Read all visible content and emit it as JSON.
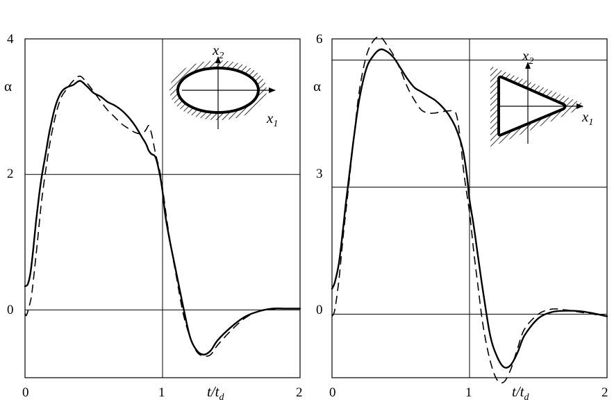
{
  "chart_data": [
    {
      "type": "line",
      "ylabel": "α",
      "xlabel_main": "t/t",
      "xlabel_sub": "d",
      "xlim": [
        0,
        2
      ],
      "ylim": [
        -1,
        4
      ],
      "grid": true,
      "x_ticks": [
        "0",
        "1",
        "2"
      ],
      "y_ticks": [
        {
          "value": 0,
          "label": "0"
        },
        {
          "value": 2,
          "label": "2"
        },
        {
          "value": 4,
          "label": "4"
        }
      ],
      "inset": {
        "shape": "ellipse",
        "axis1_main": "x",
        "axis1_sub": "1",
        "axis2_main": "x",
        "axis2_sub": "2"
      },
      "series": [
        {
          "style": "solid",
          "points": [
            [
              0,
              0.35
            ],
            [
              0.02,
              0.38
            ],
            [
              0.04,
              0.55
            ],
            [
              0.06,
              0.9
            ],
            [
              0.08,
              1.3
            ],
            [
              0.1,
              1.65
            ],
            [
              0.12,
              1.95
            ],
            [
              0.15,
              2.3
            ],
            [
              0.18,
              2.65
            ],
            [
              0.22,
              3.0
            ],
            [
              0.26,
              3.2
            ],
            [
              0.3,
              3.28
            ],
            [
              0.35,
              3.32
            ],
            [
              0.4,
              3.38
            ],
            [
              0.45,
              3.3
            ],
            [
              0.5,
              3.2
            ],
            [
              0.55,
              3.15
            ],
            [
              0.6,
              3.07
            ],
            [
              0.65,
              3.02
            ],
            [
              0.7,
              2.95
            ],
            [
              0.75,
              2.85
            ],
            [
              0.8,
              2.72
            ],
            [
              0.85,
              2.55
            ],
            [
              0.88,
              2.45
            ],
            [
              0.9,
              2.35
            ],
            [
              0.92,
              2.3
            ],
            [
              0.95,
              2.25
            ],
            [
              0.98,
              2.0
            ],
            [
              1.0,
              1.75
            ],
            [
              1.02,
              1.4
            ],
            [
              1.05,
              1.05
            ],
            [
              1.1,
              0.55
            ],
            [
              1.15,
              0.05
            ],
            [
              1.2,
              -0.4
            ],
            [
              1.25,
              -0.6
            ],
            [
              1.3,
              -0.66
            ],
            [
              1.35,
              -0.6
            ],
            [
              1.4,
              -0.45
            ],
            [
              1.5,
              -0.25
            ],
            [
              1.6,
              -0.1
            ],
            [
              1.7,
              -0.02
            ],
            [
              1.8,
              0.02
            ],
            [
              1.9,
              0.02
            ],
            [
              2.0,
              0.02
            ]
          ]
        },
        {
          "style": "dashed",
          "points": [
            [
              0,
              -0.05
            ],
            [
              0.01,
              -0.08
            ],
            [
              0.03,
              0.05
            ],
            [
              0.05,
              0.25
            ],
            [
              0.08,
              0.8
            ],
            [
              0.1,
              1.2
            ],
            [
              0.12,
              1.6
            ],
            [
              0.15,
              2.05
            ],
            [
              0.18,
              2.45
            ],
            [
              0.22,
              2.85
            ],
            [
              0.26,
              3.12
            ],
            [
              0.3,
              3.25
            ],
            [
              0.35,
              3.38
            ],
            [
              0.4,
              3.45
            ],
            [
              0.45,
              3.35
            ],
            [
              0.5,
              3.22
            ],
            [
              0.55,
              3.08
            ],
            [
              0.6,
              2.95
            ],
            [
              0.65,
              2.85
            ],
            [
              0.7,
              2.75
            ],
            [
              0.75,
              2.68
            ],
            [
              0.8,
              2.62
            ],
            [
              0.85,
              2.6
            ],
            [
              0.88,
              2.66
            ],
            [
              0.9,
              2.72
            ],
            [
              0.92,
              2.6
            ],
            [
              0.95,
              2.3
            ],
            [
              0.98,
              2.05
            ],
            [
              1.0,
              1.8
            ],
            [
              1.03,
              1.35
            ],
            [
              1.06,
              0.95
            ],
            [
              1.1,
              0.5
            ],
            [
              1.15,
              -0.05
            ],
            [
              1.2,
              -0.4
            ],
            [
              1.25,
              -0.62
            ],
            [
              1.3,
              -0.68
            ],
            [
              1.35,
              -0.66
            ],
            [
              1.4,
              -0.52
            ],
            [
              1.5,
              -0.3
            ],
            [
              1.6,
              -0.12
            ],
            [
              1.7,
              -0.02
            ],
            [
              1.8,
              0.01
            ],
            [
              1.9,
              0.02
            ],
            [
              2.0,
              0.02
            ]
          ]
        }
      ]
    },
    {
      "type": "line",
      "ylabel": "α",
      "xlabel_main": "t/t",
      "xlabel_sub": "d",
      "xlim": [
        0,
        2
      ],
      "ylim": [
        -1.5,
        6.5
      ],
      "grid": true,
      "x_ticks": [
        "0",
        "1",
        "2"
      ],
      "y_ticks": [
        {
          "value": 0,
          "label": "0"
        },
        {
          "value": 3,
          "label": "3"
        },
        {
          "value": 6,
          "label": "6"
        }
      ],
      "inset": {
        "shape": "triangle",
        "axis1_main": "x",
        "axis1_sub": "1",
        "axis2_main": "x",
        "axis2_sub": "2"
      },
      "series": [
        {
          "style": "solid",
          "points": [
            [
              0,
              0.6
            ],
            [
              0.02,
              0.75
            ],
            [
              0.05,
              1.2
            ],
            [
              0.08,
              2.0
            ],
            [
              0.1,
              2.6
            ],
            [
              0.13,
              3.4
            ],
            [
              0.16,
              4.2
            ],
            [
              0.2,
              5.1
            ],
            [
              0.25,
              5.8
            ],
            [
              0.3,
              6.1
            ],
            [
              0.35,
              6.25
            ],
            [
              0.4,
              6.2
            ],
            [
              0.45,
              6.05
            ],
            [
              0.5,
              5.8
            ],
            [
              0.55,
              5.55
            ],
            [
              0.6,
              5.35
            ],
            [
              0.65,
              5.25
            ],
            [
              0.7,
              5.15
            ],
            [
              0.75,
              5.05
            ],
            [
              0.8,
              4.9
            ],
            [
              0.85,
              4.7
            ],
            [
              0.9,
              4.4
            ],
            [
              0.95,
              3.9
            ],
            [
              0.98,
              3.3
            ],
            [
              1.0,
              2.7
            ],
            [
              1.03,
              2.1
            ],
            [
              1.06,
              1.4
            ],
            [
              1.1,
              0.5
            ],
            [
              1.15,
              -0.5
            ],
            [
              1.2,
              -1.0
            ],
            [
              1.25,
              -1.25
            ],
            [
              1.3,
              -1.2
            ],
            [
              1.35,
              -0.9
            ],
            [
              1.4,
              -0.5
            ],
            [
              1.5,
              -0.1
            ],
            [
              1.6,
              0.05
            ],
            [
              1.7,
              0.08
            ],
            [
              1.8,
              0.07
            ],
            [
              1.9,
              0.02
            ],
            [
              2.0,
              -0.05
            ]
          ]
        },
        {
          "style": "dashed",
          "points": [
            [
              0,
              -0.05
            ],
            [
              0.02,
              0.1
            ],
            [
              0.05,
              0.8
            ],
            [
              0.08,
              1.8
            ],
            [
              0.1,
              2.4
            ],
            [
              0.13,
              3.3
            ],
            [
              0.16,
              4.2
            ],
            [
              0.2,
              5.3
            ],
            [
              0.25,
              6.1
            ],
            [
              0.3,
              6.45
            ],
            [
              0.35,
              6.55
            ],
            [
              0.4,
              6.35
            ],
            [
              0.45,
              6.1
            ],
            [
              0.5,
              5.75
            ],
            [
              0.55,
              5.35
            ],
            [
              0.6,
              5.05
            ],
            [
              0.65,
              4.82
            ],
            [
              0.7,
              4.75
            ],
            [
              0.75,
              4.75
            ],
            [
              0.8,
              4.78
            ],
            [
              0.85,
              4.8
            ],
            [
              0.9,
              4.75
            ],
            [
              0.93,
              4.2
            ],
            [
              0.96,
              3.3
            ],
            [
              1.0,
              2.4
            ],
            [
              1.03,
              1.5
            ],
            [
              1.06,
              0.7
            ],
            [
              1.1,
              -0.3
            ],
            [
              1.15,
              -1.1
            ],
            [
              1.2,
              -1.55
            ],
            [
              1.25,
              -1.6
            ],
            [
              1.3,
              -1.3
            ],
            [
              1.35,
              -0.8
            ],
            [
              1.4,
              -0.35
            ],
            [
              1.5,
              0.0
            ],
            [
              1.6,
              0.12
            ],
            [
              1.7,
              0.1
            ],
            [
              1.8,
              0.05
            ],
            [
              1.9,
              0.0
            ],
            [
              2.0,
              -0.05
            ]
          ]
        }
      ]
    }
  ]
}
